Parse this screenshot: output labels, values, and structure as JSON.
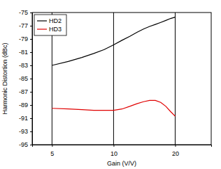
{
  "chart_data": {
    "type": "line",
    "xlabel": "Gain (V/V)",
    "ylabel": "Harmonic Distortion (dBc)",
    "x": [
      5,
      6,
      7,
      8,
      9,
      10,
      11,
      12,
      13,
      14,
      15,
      16,
      17,
      18,
      19,
      20
    ],
    "series": [
      {
        "name": "HD2",
        "color": "#000000",
        "values": [
          -83,
          -82.4,
          -81.8,
          -81.2,
          -80.6,
          -79.9,
          -79.2,
          -78.6,
          -78.0,
          -77.5,
          -77.1,
          -76.8,
          -76.5,
          -76.2,
          -75.9,
          -75.7
        ]
      },
      {
        "name": "HD3",
        "color": "#e00000",
        "values": [
          -89.5,
          -89.6,
          -89.7,
          -89.8,
          -89.8,
          -89.8,
          -89.6,
          -89.2,
          -88.8,
          -88.5,
          -88.3,
          -88.3,
          -88.6,
          -89.2,
          -90.0,
          -90.7
        ]
      }
    ],
    "log": "x",
    "xlim": [
      4,
      30
    ],
    "xticks": [
      5,
      10,
      20
    ],
    "ylim": [
      -95,
      -75
    ],
    "yticks": [
      -95,
      -93,
      -91,
      -89,
      -87,
      -85,
      -83,
      -81,
      -79,
      -77,
      -75
    ],
    "grid": "x",
    "legend": "upper left"
  }
}
